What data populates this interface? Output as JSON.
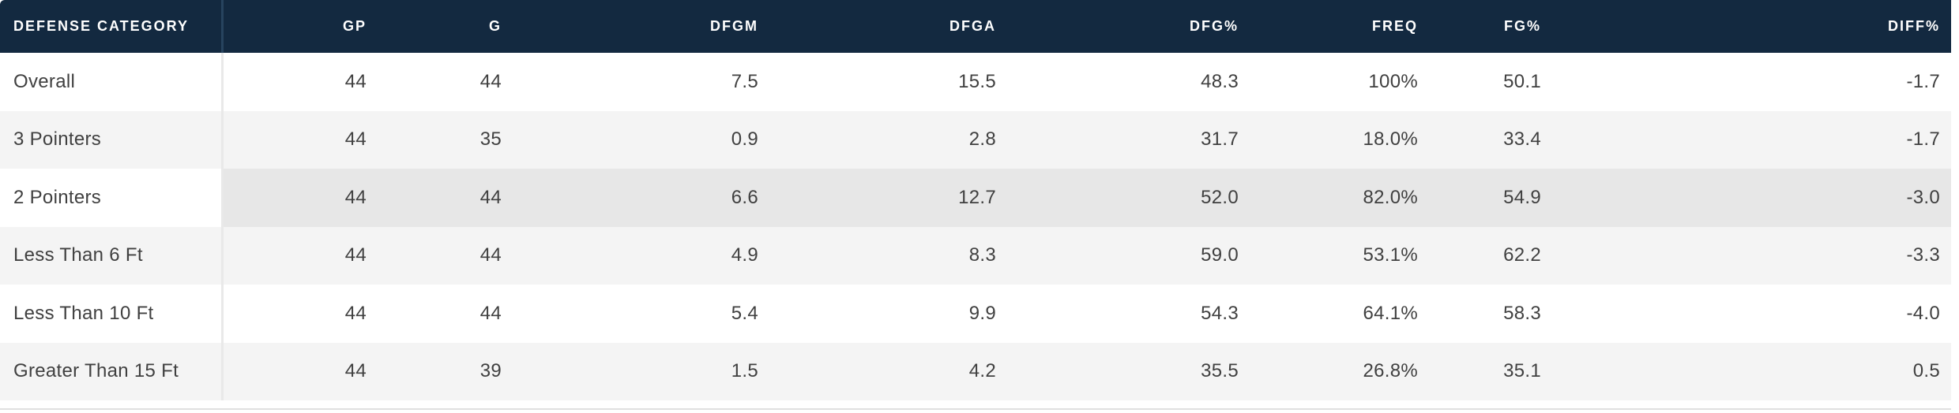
{
  "colors": {
    "header-bg": "#132940",
    "header-text": "#ffffff",
    "header-divider": "#27435e",
    "cell-text": "#404040",
    "row-bg": "#ffffff",
    "stripe-bg": "#f4f4f4",
    "highlight-bg": "#e7e7e7",
    "column-divider": "#e9e9e9",
    "hairline": "#e0e0e0"
  },
  "table": {
    "columns": [
      {
        "key": "category",
        "label": "DEFENSE CATEGORY"
      },
      {
        "key": "gp",
        "label": "GP"
      },
      {
        "key": "g",
        "label": "G"
      },
      {
        "key": "dfgm",
        "label": "DFGM"
      },
      {
        "key": "dfga",
        "label": "DFGA"
      },
      {
        "key": "dfg_pct",
        "label": "DFG%"
      },
      {
        "key": "freq",
        "label": "FREQ"
      },
      {
        "key": "fg_pct",
        "label": "FG%"
      },
      {
        "key": "diff_pct",
        "label": "DIFF%"
      }
    ],
    "rows": [
      {
        "category": "Overall",
        "gp": "44",
        "g": "44",
        "dfgm": "7.5",
        "dfga": "15.5",
        "dfg_pct": "48.3",
        "freq": "100%",
        "fg_pct": "50.1",
        "diff_pct": "-1.7",
        "highlighted": false
      },
      {
        "category": "3 Pointers",
        "gp": "44",
        "g": "35",
        "dfgm": "0.9",
        "dfga": "2.8",
        "dfg_pct": "31.7",
        "freq": "18.0%",
        "fg_pct": "33.4",
        "diff_pct": "-1.7",
        "highlighted": false
      },
      {
        "category": "2 Pointers",
        "gp": "44",
        "g": "44",
        "dfgm": "6.6",
        "dfga": "12.7",
        "dfg_pct": "52.0",
        "freq": "82.0%",
        "fg_pct": "54.9",
        "diff_pct": "-3.0",
        "highlighted": true
      },
      {
        "category": "Less Than 6 Ft",
        "gp": "44",
        "g": "44",
        "dfgm": "4.9",
        "dfga": "8.3",
        "dfg_pct": "59.0",
        "freq": "53.1%",
        "fg_pct": "62.2",
        "diff_pct": "-3.3",
        "highlighted": false
      },
      {
        "category": "Less Than 10 Ft",
        "gp": "44",
        "g": "44",
        "dfgm": "5.4",
        "dfga": "9.9",
        "dfg_pct": "54.3",
        "freq": "64.1%",
        "fg_pct": "58.3",
        "diff_pct": "-4.0",
        "highlighted": false
      },
      {
        "category": "Greater Than 15 Ft",
        "gp": "44",
        "g": "39",
        "dfgm": "1.5",
        "dfga": "4.2",
        "dfg_pct": "35.5",
        "freq": "26.8%",
        "fg_pct": "35.1",
        "diff_pct": "0.5",
        "highlighted": false
      }
    ]
  },
  "chart_data": {
    "type": "table",
    "title": "Defense Category shot defense statistics",
    "columns": [
      "DEFENSE CATEGORY",
      "GP",
      "G",
      "DFGM",
      "DFGA",
      "DFG%",
      "FREQ",
      "FG%",
      "DIFF%"
    ],
    "rows": [
      [
        "Overall",
        44,
        44,
        7.5,
        15.5,
        48.3,
        "100%",
        50.1,
        -1.7
      ],
      [
        "3 Pointers",
        44,
        35,
        0.9,
        2.8,
        31.7,
        "18.0%",
        33.4,
        -1.7
      ],
      [
        "2 Pointers",
        44,
        44,
        6.6,
        12.7,
        52.0,
        "82.0%",
        54.9,
        -3.0
      ],
      [
        "Less Than 6 Ft",
        44,
        44,
        4.9,
        8.3,
        59.0,
        "53.1%",
        62.2,
        -3.3
      ],
      [
        "Less Than 10 Ft",
        44,
        44,
        5.4,
        9.9,
        54.3,
        "64.1%",
        58.3,
        -4.0
      ],
      [
        "Greater Than 15 Ft",
        44,
        39,
        1.5,
        4.2,
        35.5,
        "26.8%",
        35.1,
        0.5
      ]
    ],
    "highlighted_row": "2 Pointers",
    "layout_hints": {
      "grid": "row-striped",
      "numeric_alignment": "right",
      "first_column_sticky_divider": true
    }
  }
}
